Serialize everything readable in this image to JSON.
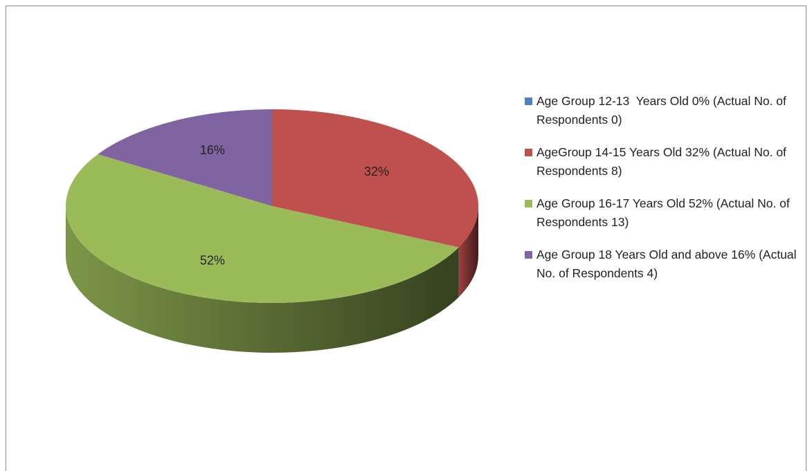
{
  "chart_data": {
    "type": "pie3d",
    "categories": [
      "Age Group 12-13  Years Old 0% (Actual No. of Respondents 0)",
      "AgeGroup 14-15 Years Old 32% (Actual No. of Respondents 8)",
      "Age Group 16-17 Years Old 52% (Actual No. of Respondents 13)",
      "Age Group 18 Years Old and above 16% (Actual No. of Respondents 4)"
    ],
    "values": [
      0,
      32,
      52,
      16
    ],
    "value_labels": [
      null,
      "32%",
      "52%",
      "16%"
    ],
    "colors": [
      "#4f81bd",
      "#c0504d",
      "#9bbb59",
      "#8064a2"
    ],
    "legend": "right"
  }
}
